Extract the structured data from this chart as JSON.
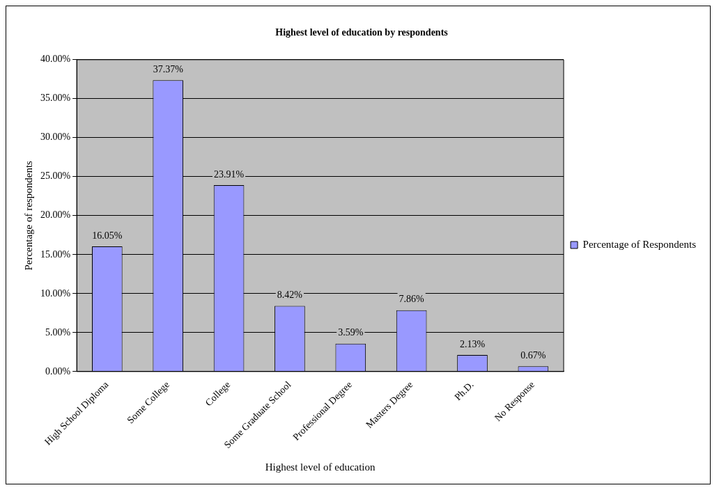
{
  "chart_data": {
    "type": "bar",
    "title": "Highest level of education by respondents",
    "xlabel": "Highest level of education",
    "ylabel": "Percentage of respondents",
    "categories": [
      "High School Diploma",
      "Some College",
      "College",
      "Some Graduate School",
      "Professional Degree",
      "Masters Degree",
      "Ph.D.",
      "No Response"
    ],
    "series": [
      {
        "name": "Percentage of Respondents",
        "color": "#9999ff",
        "values": [
          16.05,
          37.37,
          23.91,
          8.42,
          3.59,
          7.86,
          2.13,
          0.67
        ],
        "value_labels": [
          "16.05%",
          "37.37%",
          "23.91%",
          "8.42%",
          "3.59%",
          "7.86%",
          "2.13%",
          "0.67%"
        ]
      }
    ],
    "ylim": [
      0,
      40
    ],
    "yticks": [
      {
        "value": 0,
        "label": "0.00%"
      },
      {
        "value": 5,
        "label": "5.00%"
      },
      {
        "value": 10,
        "label": "10.00%"
      },
      {
        "value": 15,
        "label": "15.00%"
      },
      {
        "value": 20,
        "label": "20.00%"
      },
      {
        "value": 25,
        "label": "25.00%"
      },
      {
        "value": 30,
        "label": "30.00%"
      },
      {
        "value": 35,
        "label": "35.00%"
      },
      {
        "value": 40,
        "label": "40.00%"
      }
    ],
    "grid": "y",
    "legend": "right"
  }
}
